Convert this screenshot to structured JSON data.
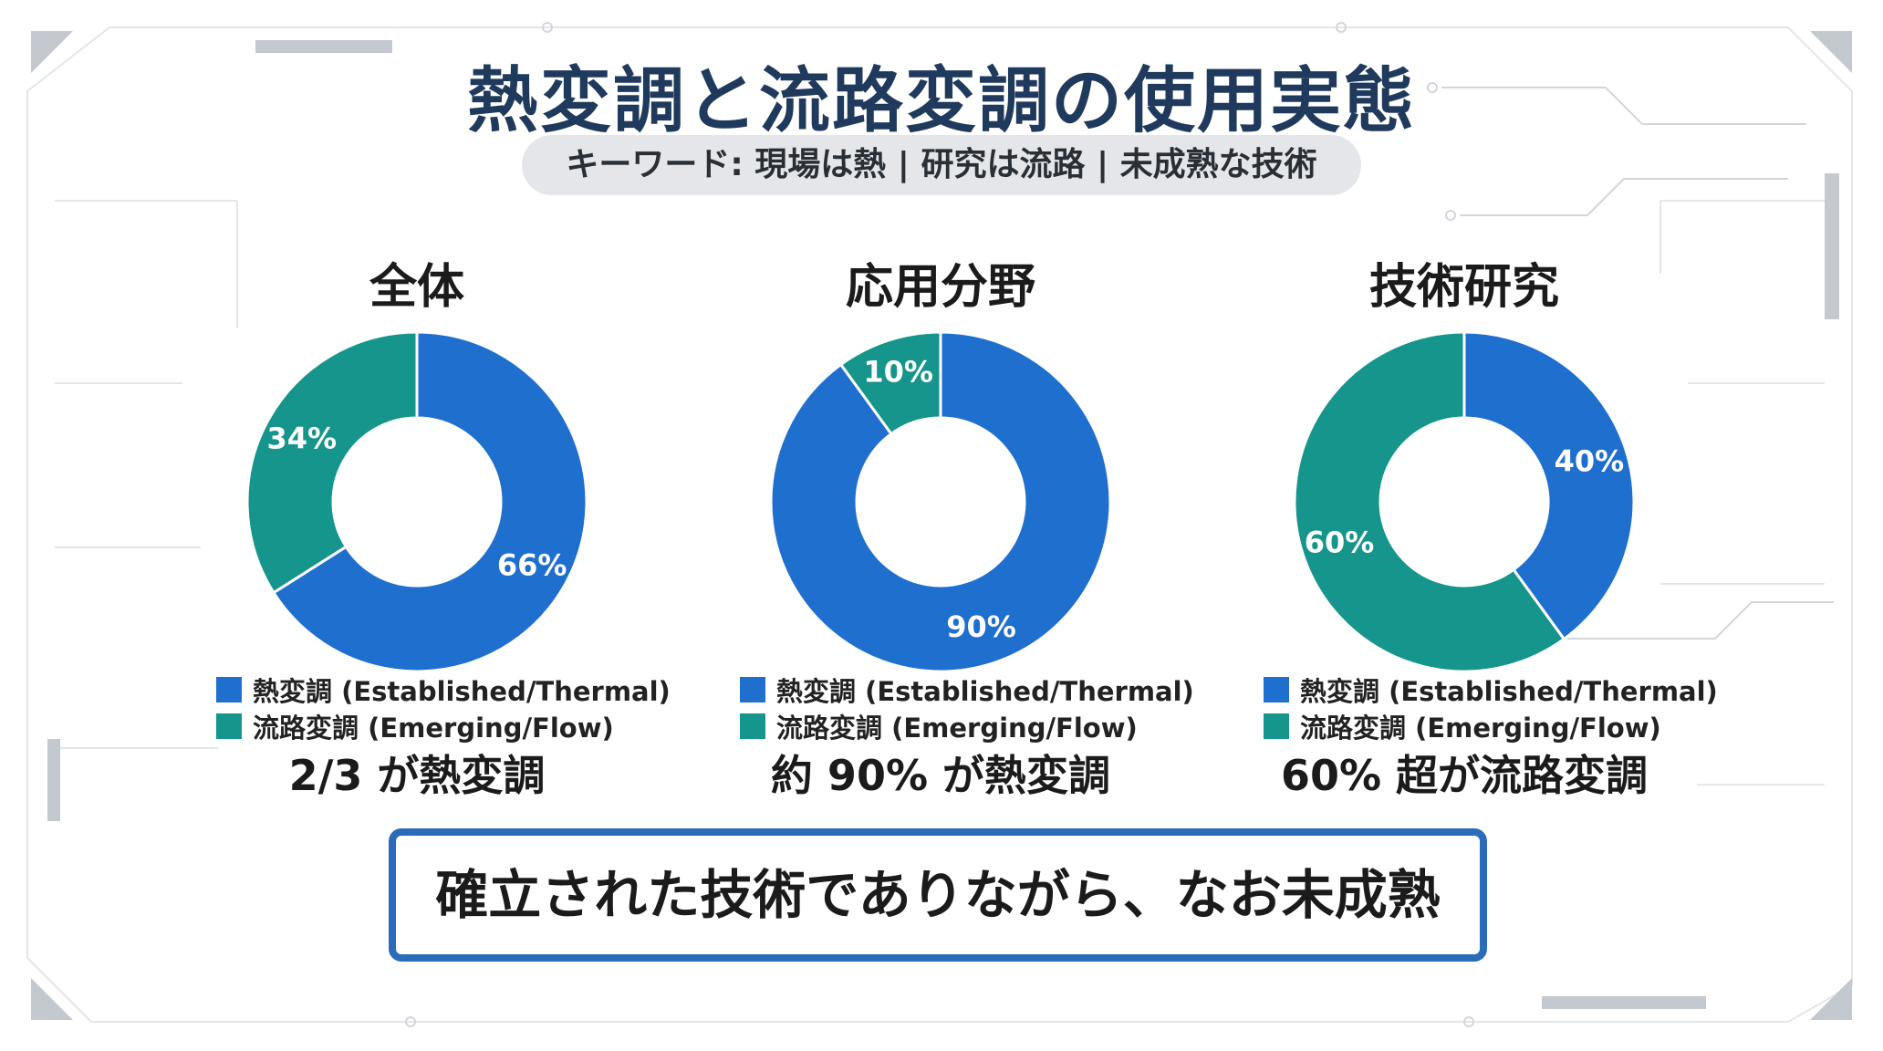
{
  "header": {
    "title": "熱変調と流路変調の使用実態",
    "keywords": "キーワード: 現場は熱 | 研究は流路 | 未成熟な技術"
  },
  "colors": {
    "thermal": "#1f6fce",
    "flow": "#16958c"
  },
  "chart_data": [
    {
      "type": "pie",
      "title": "全体",
      "categories": [
        "熱変調 (Established/Thermal)",
        "流路変調 (Emerging/Flow)"
      ],
      "values": [
        66,
        34
      ],
      "labels": [
        "66%",
        "34%"
      ],
      "summary": "2/3 が熱変調"
    },
    {
      "type": "pie",
      "title": "応用分野",
      "categories": [
        "熱変調 (Established/Thermal)",
        "流路変調 (Emerging/Flow)"
      ],
      "values": [
        90,
        10
      ],
      "labels": [
        "90%",
        "10%"
      ],
      "summary": "約 90% が熱変調"
    },
    {
      "type": "pie",
      "title": "技術研究",
      "categories": [
        "熱変調 (Established/Thermal)",
        "流路変調 (Emerging/Flow)"
      ],
      "values": [
        40,
        60
      ],
      "labels": [
        "40%",
        "60%"
      ],
      "summary": "60% 超が流路変調"
    }
  ],
  "conclusion": "確立された技術でありながら、なお未成熟"
}
